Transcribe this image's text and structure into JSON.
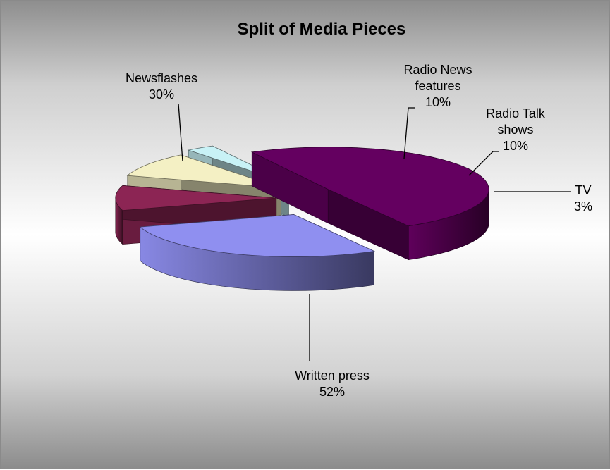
{
  "chart_data": {
    "type": "pie",
    "style": "3d-exploded",
    "title": "Split of Media Pieces",
    "legend": "none",
    "slices": [
      {
        "name": "Newsflashes",
        "value": 30,
        "label": "30%",
        "color": "#8f8ff0"
      },
      {
        "name": "Radio News features",
        "value": 10,
        "label": "10%",
        "color": "#8c2554"
      },
      {
        "name": "Radio Talk shows",
        "value": 10,
        "label": "10%",
        "color": "#f4f0c4"
      },
      {
        "name": "TV",
        "value": 3,
        "label": "3%",
        "color": "#c8f2f6"
      },
      {
        "name": "Written press",
        "value": 52,
        "label": "52%",
        "color": "#640060"
      }
    ]
  },
  "colors": {
    "background_top": "#8e8e8e",
    "background_middle": "#ffffff",
    "background_bottom": "#8c8c8c"
  }
}
